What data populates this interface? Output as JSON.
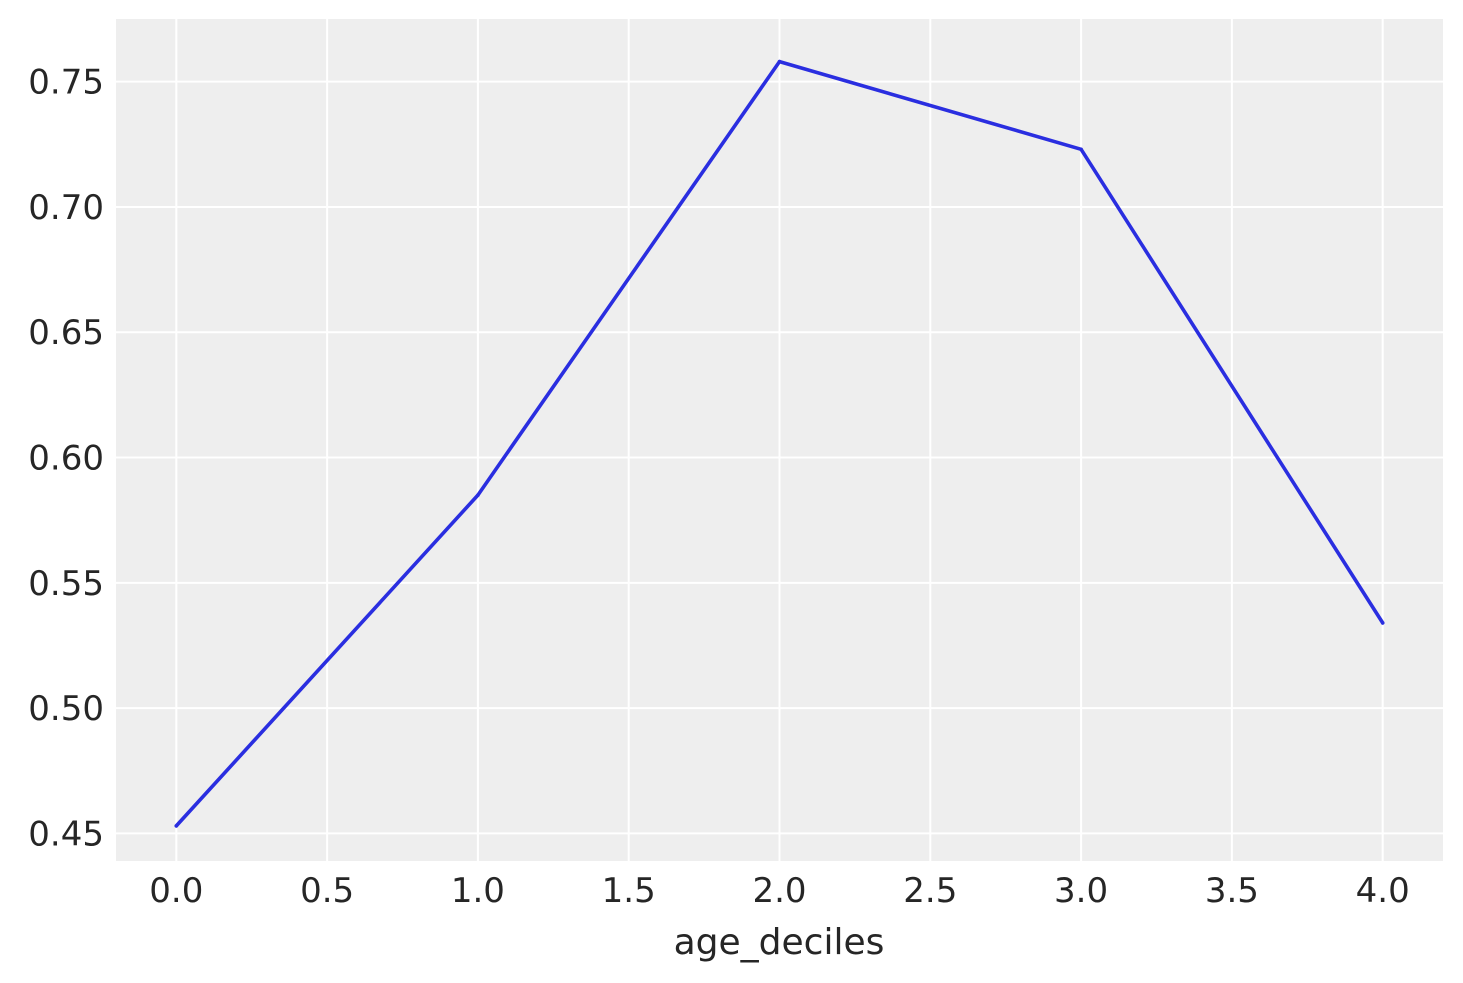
{
  "chart_data": {
    "type": "line",
    "title": "",
    "xlabel": "age_deciles",
    "ylabel": "",
    "xlim": [
      -0.2,
      4.2
    ],
    "ylim": [
      0.439,
      0.775
    ],
    "xticks": [
      0.0,
      0.5,
      1.0,
      1.5,
      2.0,
      2.5,
      3.0,
      3.5,
      4.0
    ],
    "xtick_labels": [
      "0.0",
      "0.5",
      "1.0",
      "1.5",
      "2.0",
      "2.5",
      "3.0",
      "3.5",
      "4.0"
    ],
    "yticks": [
      0.45,
      0.5,
      0.55,
      0.6,
      0.65,
      0.7,
      0.75
    ],
    "ytick_labels": [
      "0.45",
      "0.50",
      "0.55",
      "0.60",
      "0.65",
      "0.70",
      "0.75"
    ],
    "grid": true,
    "background_color": "#eeeeee",
    "series": [
      {
        "color": "#2a2ee0",
        "x": [
          0,
          1,
          2,
          3,
          4
        ],
        "values": [
          0.453,
          0.585,
          0.758,
          0.723,
          0.534
        ]
      }
    ]
  }
}
